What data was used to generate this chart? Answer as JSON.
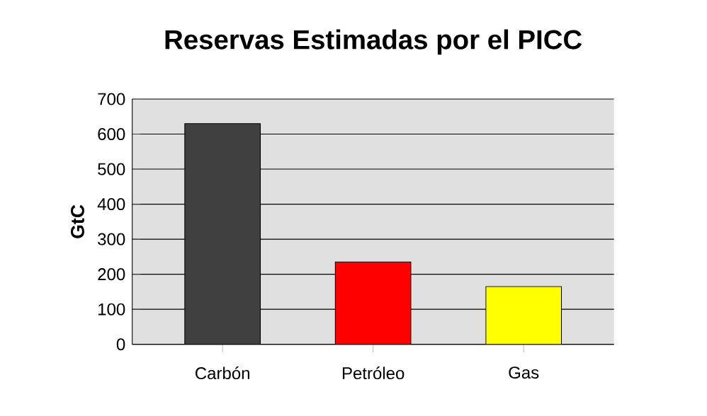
{
  "chart_data": {
    "type": "bar",
    "title": "Reservas Estimadas por el PICC",
    "ylabel": "GtC",
    "categories": [
      "Carbón",
      "Petróleo",
      "Gas"
    ],
    "values": [
      630,
      235,
      165
    ],
    "colors": [
      "#404040",
      "#ff0000",
      "#ffff00"
    ],
    "ylim": [
      0,
      700
    ],
    "yticks": [
      0,
      100,
      200,
      300,
      400,
      500,
      600,
      700
    ],
    "grid": "y"
  }
}
